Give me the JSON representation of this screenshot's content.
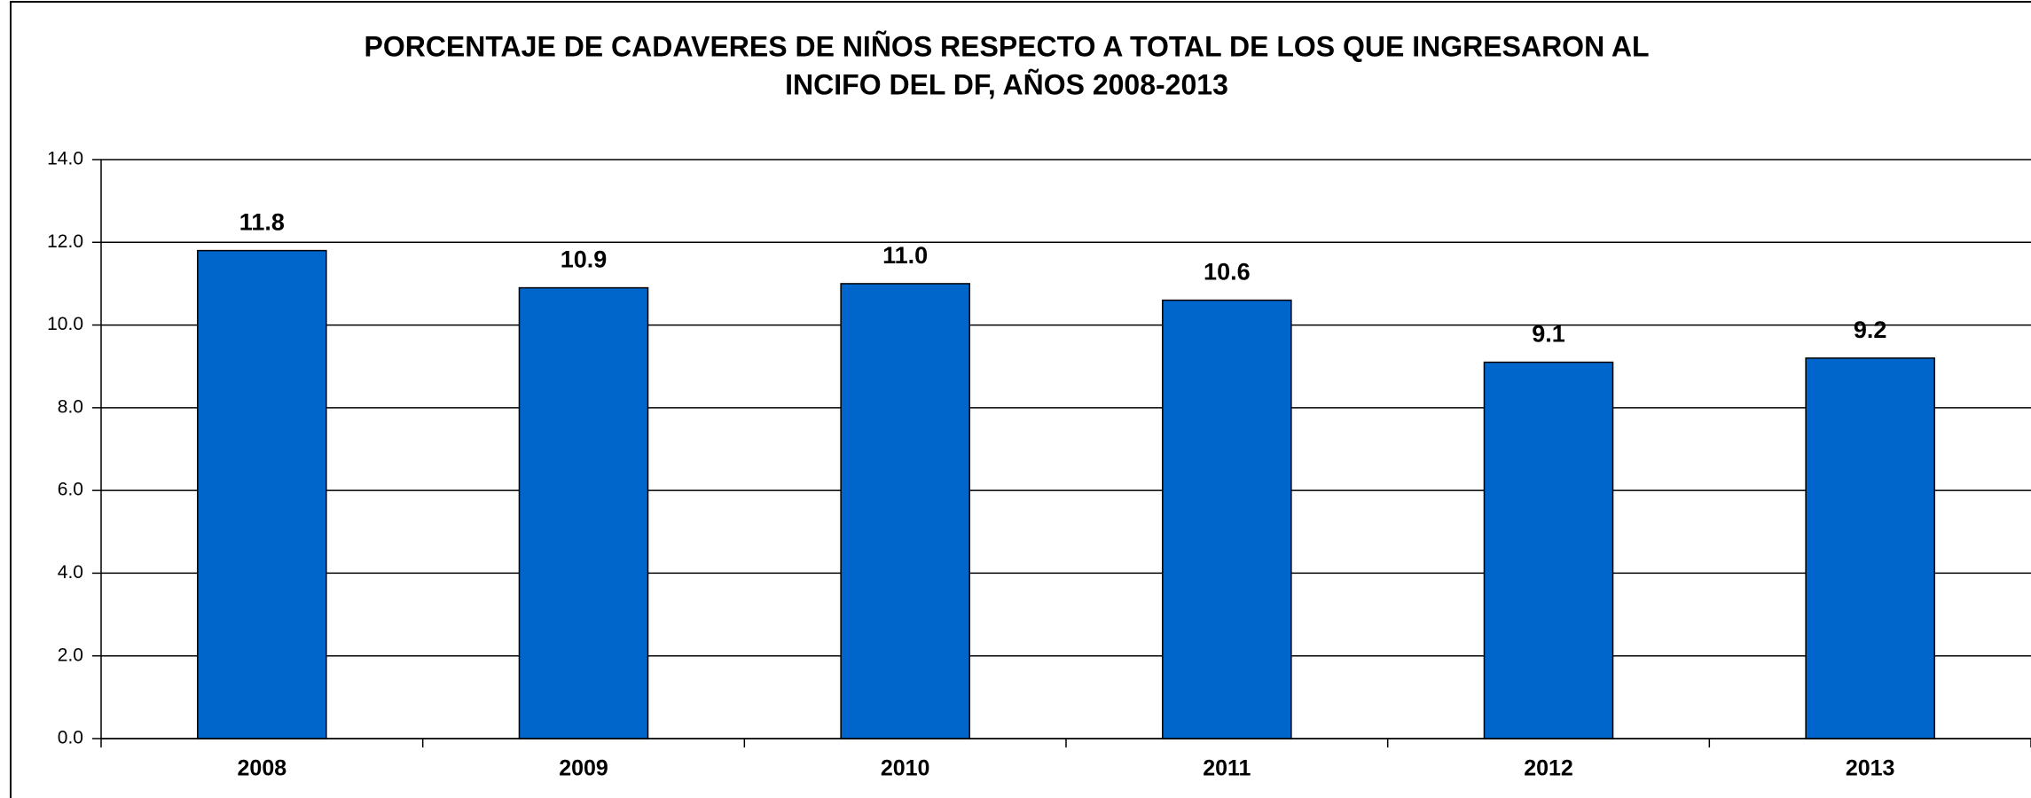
{
  "chart_data": {
    "type": "bar",
    "title": [
      "PORCENTAJE DE CADAVERES DE NIÑOS RESPECTO A TOTAL DE LOS QUE INGRESARON AL",
      "INCIFO DEL DF, AÑOS 2008-2013"
    ],
    "categories": [
      "2008",
      "2009",
      "2010",
      "2011",
      "2012",
      "2013"
    ],
    "values": [
      11.8,
      10.9,
      11.0,
      10.6,
      9.1,
      9.2
    ],
    "value_labels": [
      "11.8",
      "10.9",
      "11.0",
      "10.6",
      "9.1",
      "9.2"
    ],
    "color": "#0066cc",
    "ylim": [
      0,
      14
    ],
    "yticks": [
      {
        "value": 0,
        "label": "0.0"
      },
      {
        "value": 2,
        "label": "2.0"
      },
      {
        "value": 4,
        "label": "4.0"
      },
      {
        "value": 6,
        "label": "6.0"
      },
      {
        "value": 8,
        "label": "8.0"
      },
      {
        "value": 10,
        "label": "10.0"
      },
      {
        "value": 12,
        "label": "12.0"
      },
      {
        "value": 14,
        "label": "14.0"
      }
    ],
    "grid": true
  }
}
